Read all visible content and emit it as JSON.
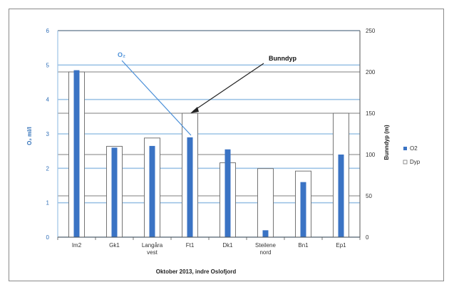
{
  "chart_data": {
    "type": "bar",
    "title": "",
    "xlabel": "Oktober 2013, indre Oslofjord",
    "ylabel_left": "O₂ ml/l",
    "ylabel_right": "Bunndyp (m)",
    "ylim_left": [
      0,
      6
    ],
    "ylim_right": [
      0,
      250
    ],
    "left_ticks": [
      "0",
      "1",
      "2",
      "3",
      "4",
      "5",
      "6"
    ],
    "right_ticks": [
      "0",
      "50",
      "100",
      "150",
      "200",
      "250"
    ],
    "categories": [
      "Im2",
      "Gk1",
      "Langåra vest",
      "Ft1",
      "Dk1",
      "Steilene nord",
      "Bn1",
      "Ep1"
    ],
    "category_lines": [
      [
        "Im2"
      ],
      [
        "Gk1"
      ],
      [
        "Langåra",
        "vest"
      ],
      [
        "Ft1"
      ],
      [
        "Dk1"
      ],
      [
        "Steilene",
        "nord"
      ],
      [
        "Bn1"
      ],
      [
        "Ep1"
      ]
    ],
    "series": [
      {
        "name": "O2",
        "axis": "left",
        "color": "#3a73c4",
        "values": [
          4.85,
          2.6,
          2.65,
          2.9,
          2.55,
          0.2,
          1.6,
          2.4
        ]
      },
      {
        "name": "Dyp",
        "axis": "right",
        "color": "#ffffff",
        "values": [
          200,
          110,
          120,
          150,
          90,
          83,
          80,
          150
        ]
      }
    ],
    "annotations": [
      {
        "text": "O₂",
        "color": "#4a8fd8"
      },
      {
        "text": "Bunndyp",
        "color": "#111111"
      }
    ],
    "grid": true,
    "legend_position": "right"
  }
}
